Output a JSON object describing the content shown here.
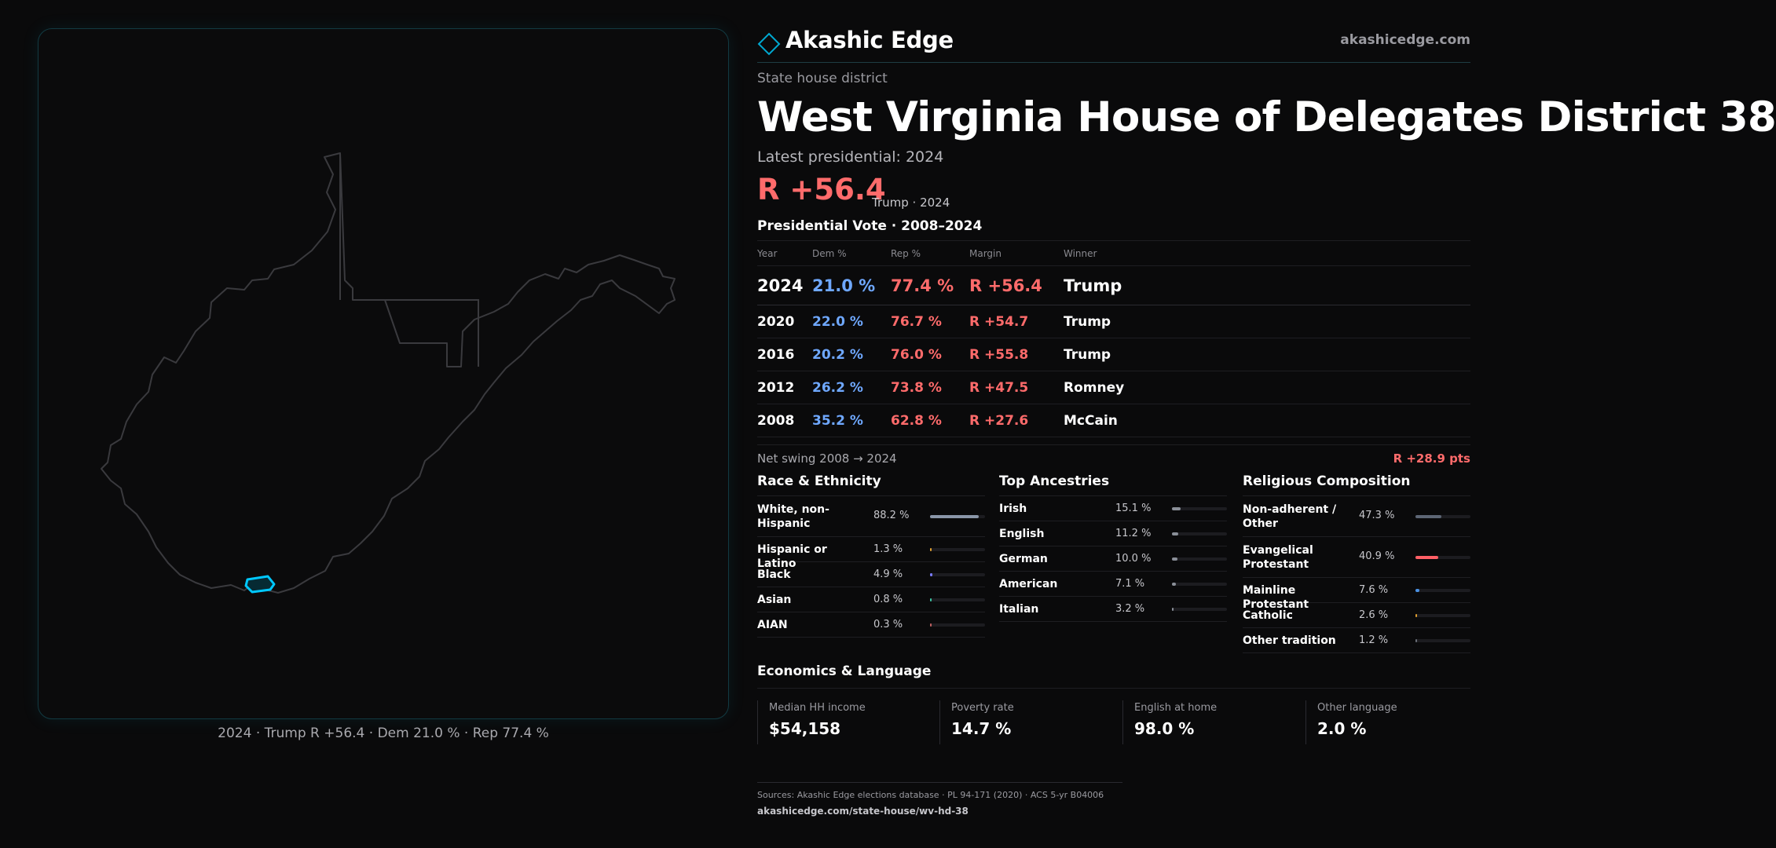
{
  "brand": {
    "name": "Akashic Edge",
    "url": "akashicedge.com",
    "icon": "diamond-logo-icon",
    "accent": "#00c8ff"
  },
  "header": {
    "kicker": "State house district",
    "title": "West Virginia House of Delegates District 38",
    "latest_label": "Latest presidential: 2024",
    "margin": "R +56.4",
    "margin_sub": "Trump · 2024"
  },
  "map": {
    "caption": "2024 · Trump R +56.4 · Dem 21.0 % · Rep 77.4 %",
    "highlight_color": "#00c8ff"
  },
  "presidential": {
    "heading": "Presidential Vote · 2008–2024",
    "columns": {
      "year": "Year",
      "dem": "Dem %",
      "rep": "Rep %",
      "margin": "Margin",
      "winner": "Winner"
    },
    "rows": [
      {
        "year": "2024",
        "dem": "21.0 %",
        "rep": "77.4 %",
        "margin": "R +56.4",
        "winner": "Trump"
      },
      {
        "year": "2020",
        "dem": "22.0 %",
        "rep": "76.7 %",
        "margin": "R +54.7",
        "winner": "Trump"
      },
      {
        "year": "2016",
        "dem": "20.2 %",
        "rep": "76.0 %",
        "margin": "R +55.8",
        "winner": "Trump"
      },
      {
        "year": "2012",
        "dem": "26.2 %",
        "rep": "73.8 %",
        "margin": "R +47.5",
        "winner": "Romney"
      },
      {
        "year": "2008",
        "dem": "35.2 %",
        "rep": "62.8 %",
        "margin": "R +27.6",
        "winner": "McCain"
      }
    ],
    "colors": {
      "dem": "#6fa8ff",
      "rep": "#ff6b6b"
    }
  },
  "swing": {
    "label": "Net swing 2008 → 2024",
    "value": "R +28.9 pts"
  },
  "race": {
    "title": "Race & Ethnicity",
    "items": [
      {
        "label": "White, non-Hispanic",
        "value": "88.2 %",
        "pct": 88.2,
        "color": "#8a96a8"
      },
      {
        "label": "Hispanic or Latino",
        "value": "1.3 %",
        "pct": 1.3,
        "color": "#e0a030"
      },
      {
        "label": "Black",
        "value": "4.9 %",
        "pct": 4.9,
        "color": "#7a7cff"
      },
      {
        "label": "Asian",
        "value": "0.8 %",
        "pct": 0.8,
        "color": "#3cc3a0"
      },
      {
        "label": "AIAN",
        "value": "0.3 %",
        "pct": 0.3,
        "color": "#c06060"
      }
    ]
  },
  "ancestry": {
    "title": "Top Ancestries",
    "items": [
      {
        "label": "Irish",
        "value": "15.1 %",
        "pct": 15.1,
        "color": "#8a8f98"
      },
      {
        "label": "English",
        "value": "11.2 %",
        "pct": 11.2,
        "color": "#8a8f98"
      },
      {
        "label": "German",
        "value": "10.0 %",
        "pct": 10.0,
        "color": "#8a8f98"
      },
      {
        "label": "American",
        "value": "7.1 %",
        "pct": 7.1,
        "color": "#8a8f98"
      },
      {
        "label": "Italian",
        "value": "3.2 %",
        "pct": 3.2,
        "color": "#8a8f98"
      }
    ]
  },
  "religion": {
    "title": "Religious Composition",
    "items": [
      {
        "label": "Non-adherent / Other",
        "value": "47.3 %",
        "pct": 47.3,
        "color": "#5d6675"
      },
      {
        "label": "Evangelical Protestant",
        "value": "40.9 %",
        "pct": 40.9,
        "color": "#ff5f66"
      },
      {
        "label": "Mainline Protestant",
        "value": "7.6 %",
        "pct": 7.6,
        "color": "#4a90e2"
      },
      {
        "label": "Catholic",
        "value": "2.6 %",
        "pct": 2.6,
        "color": "#e0a030"
      },
      {
        "label": "Other tradition",
        "value": "1.2 %",
        "pct": 1.2,
        "color": "#6a6f78"
      }
    ]
  },
  "economics": {
    "title": "Economics & Language",
    "cells": [
      {
        "label": "Median HH income",
        "value": "$54,158"
      },
      {
        "label": "Poverty rate",
        "value": "14.7 %"
      },
      {
        "label": "English at home",
        "value": "98.0 %"
      },
      {
        "label": "Other language",
        "value": "2.0 %"
      }
    ]
  },
  "sources": {
    "text": "Sources: Akashic Edge elections database · PL 94-171 (2020) · ACS 5-yr B04006",
    "url": "akashicedge.com/state-house/wv-hd-38"
  }
}
